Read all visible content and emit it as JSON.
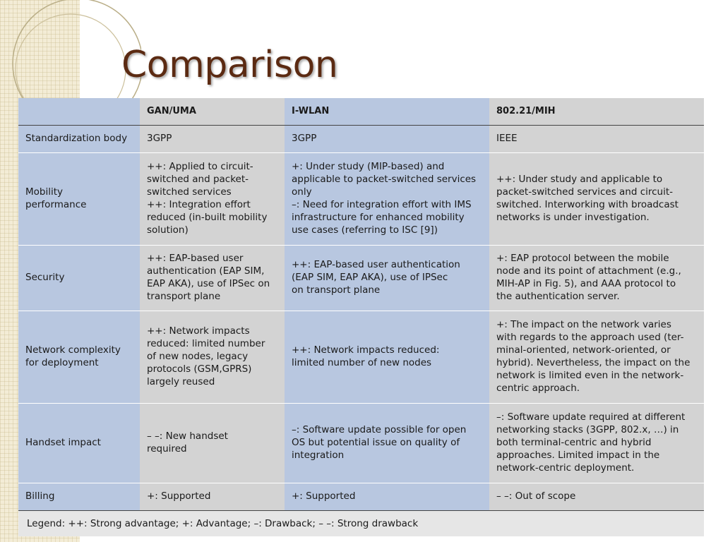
{
  "title": "Comparison",
  "table": {
    "headers": [
      "",
      "GAN/UMA",
      "I-WLAN",
      "802.21/MIH"
    ],
    "rows": [
      {
        "label": [
          "Standardization body"
        ],
        "gan": [
          "3GPP"
        ],
        "iwlan": [
          "3GPP"
        ],
        "mih": [
          "IEEE"
        ]
      },
      {
        "label": [
          "Mobility",
          "performance"
        ],
        "gan": [
          "++: Applied to circuit-",
          "switched and packet-",
          "switched services",
          "++: Integration effort",
          "reduced (in-built mobility",
          "solution)"
        ],
        "iwlan": [
          "+: Under study (MIP-based) and",
          "applicable to packet-switched services",
          "only",
          "–: Need for integration effort with IMS",
          "infrastructure for enhanced mobility",
          "use cases (referring to ISC [9])"
        ],
        "mih": [
          "++: Under study and applicable to",
          "packet-switched services and circuit-",
          "switched. Interworking with broadcast",
          "networks is under investigation."
        ]
      },
      {
        "label": [
          "Security"
        ],
        "gan": [
          "++: EAP-based user",
          "authentication (EAP SIM,",
          "EAP AKA), use of IPSec on",
          "transport plane"
        ],
        "iwlan": [
          "++: EAP-based user authentication",
          "(EAP SIM, EAP AKA), use of IPSec",
          "on transport plane"
        ],
        "mih": [
          "+: EAP protocol between the mobile",
          "node and its point of attachment (e.g.,",
          "MIH-AP in Fig. 5), and AAA protocol to",
          "the authentication server."
        ]
      },
      {
        "label": [
          "Network complexity",
          "for deployment"
        ],
        "gan": [
          "++: Network impacts",
          "reduced: limited number",
          "of new nodes, legacy",
          "protocols (GSM,GPRS)",
          "largely reused"
        ],
        "iwlan": [
          "++: Network impacts reduced:",
          "limited number of new nodes"
        ],
        "mih": [
          "+: The impact on the network varies",
          "with regards to the approach used (ter-",
          "minal-oriented, network-oriented, or",
          "hybrid). Nevertheless, the impact on the",
          "network is limited even in the network-",
          "centric approach."
        ]
      },
      {
        "label": [
          "Handset impact"
        ],
        "gan": [
          "– –: New handset",
          "required"
        ],
        "iwlan": [
          "–: Software update possible for open",
          "OS but potential issue on quality of",
          "integration"
        ],
        "mih": [
          "–: Software update required at different",
          "networking stacks (3GPP, 802.x, …) in",
          "both terminal-centric and hybrid",
          "approaches. Limited impact in the",
          "network-centric deployment."
        ]
      },
      {
        "label": [
          "Billing"
        ],
        "gan": [
          "+: Supported"
        ],
        "iwlan": [
          "+: Supported"
        ],
        "mih": [
          "– –: Out of scope"
        ]
      }
    ],
    "legend": "Legend: ++: Strong advantage; +: Advantage; –: Drawback; – –: Strong drawback"
  },
  "colors": {
    "title": "#5b2a12",
    "blue_column": "#b8c7e0",
    "gray_column": "#d3d3d3",
    "legend_bg": "#e6e6e6"
  }
}
